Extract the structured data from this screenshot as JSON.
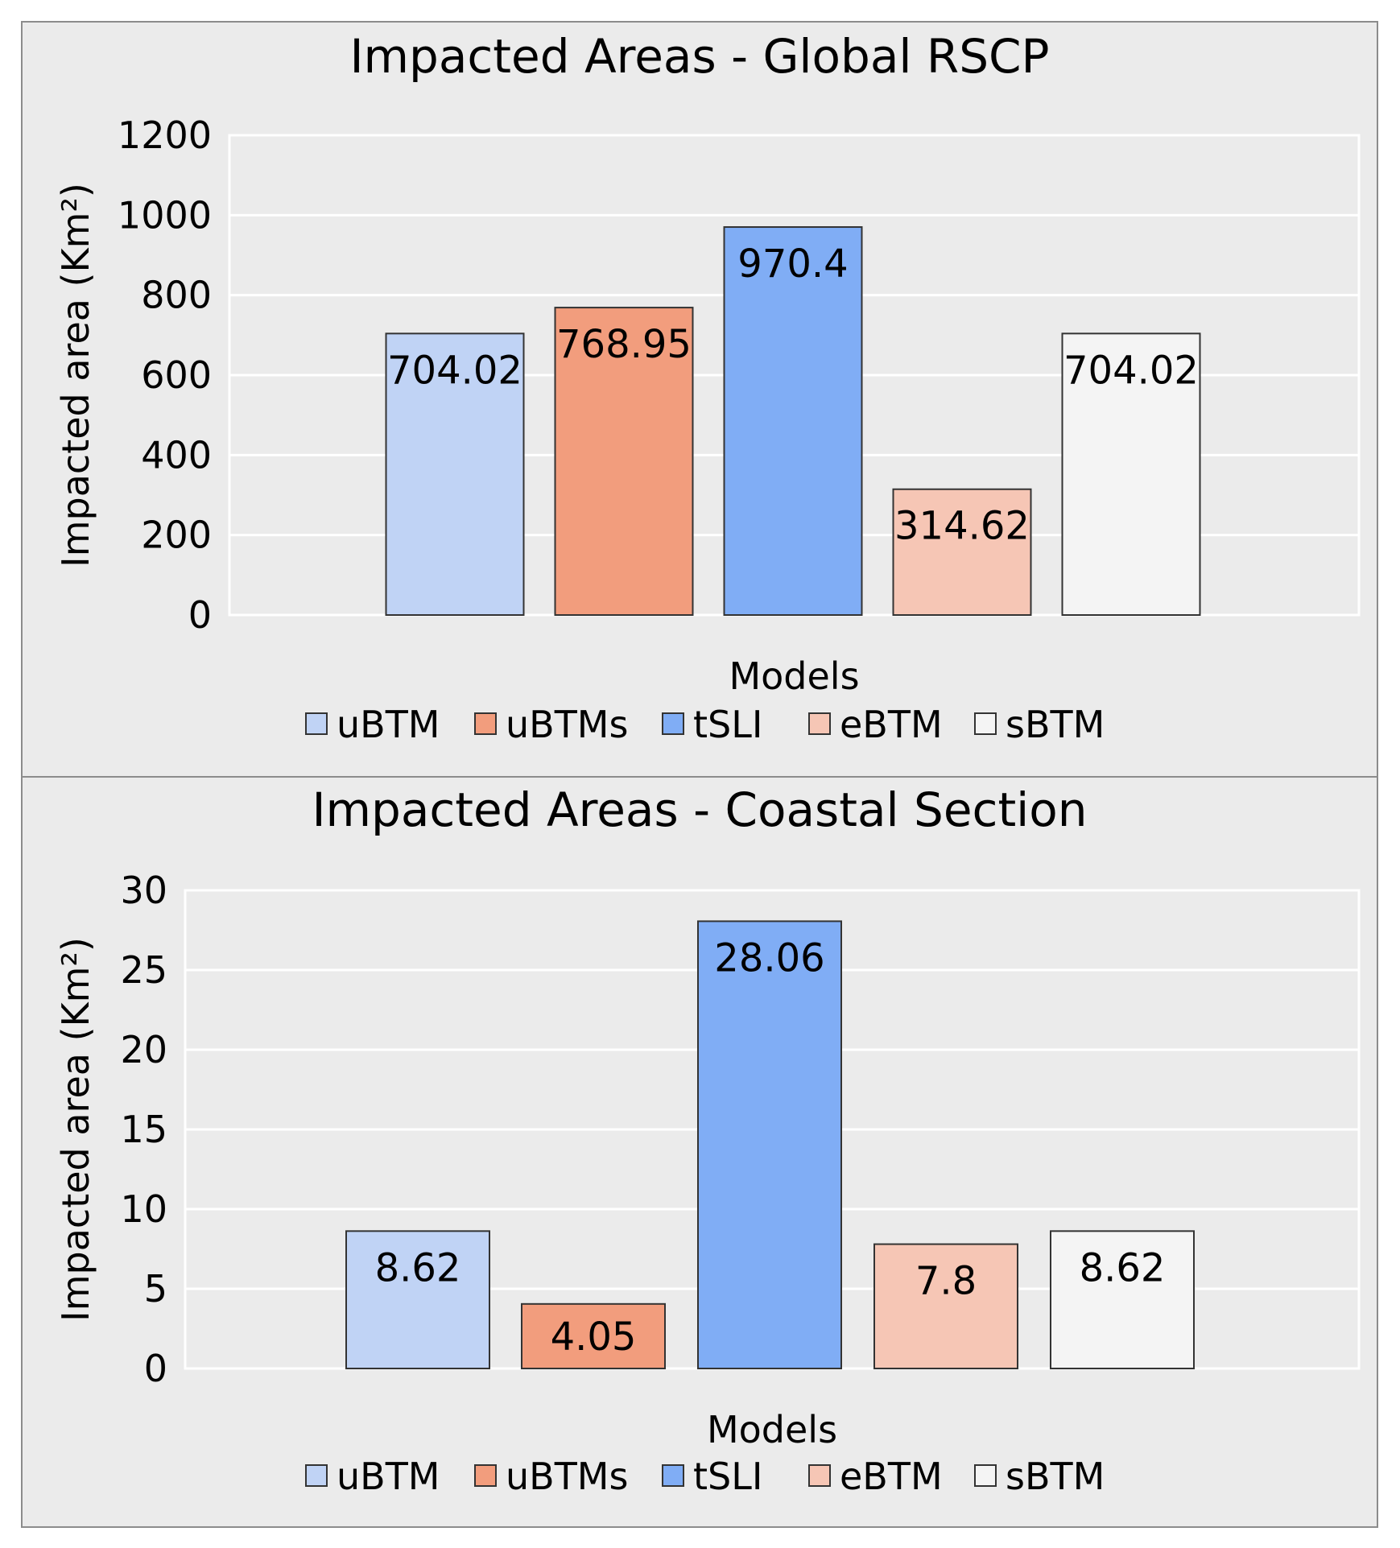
{
  "chart_data": [
    {
      "type": "bar",
      "title": "Impacted Areas - Global RSCP",
      "xlabel": "Models",
      "ylabel": "Impacted area (Km²)",
      "ylim": [
        0,
        1200
      ],
      "yticks": [
        0,
        200,
        400,
        600,
        800,
        1000,
        1200
      ],
      "grid": true,
      "legend_position": "bottom",
      "series": [
        {
          "name": "uBTM",
          "value": 704.02,
          "label": "704.02",
          "color": "#c0d3f5"
        },
        {
          "name": "uBTMs",
          "value": 768.95,
          "label": "768.95",
          "color": "#f29d7d"
        },
        {
          "name": "tSLI",
          "value": 970.4,
          "label": "970.4",
          "color": "#80adf5"
        },
        {
          "name": "eBTM",
          "value": 314.62,
          "label": "314.62",
          "color": "#f6c6b5"
        },
        {
          "name": "sBTM",
          "value": 704.02,
          "label": "704.02",
          "color": "#f4f4f4"
        }
      ]
    },
    {
      "type": "bar",
      "title": "Impacted Areas - Coastal Section",
      "xlabel": "Models",
      "ylabel": "Impacted area (Km²)",
      "ylim": [
        0,
        30
      ],
      "yticks": [
        0,
        5,
        10,
        15,
        20,
        25,
        30
      ],
      "grid": true,
      "legend_position": "bottom",
      "series": [
        {
          "name": "uBTM",
          "value": 8.62,
          "label": "8.62",
          "color": "#c0d3f5"
        },
        {
          "name": "uBTMs",
          "value": 4.05,
          "label": "4.05",
          "color": "#f29d7d"
        },
        {
          "name": "tSLI",
          "value": 28.06,
          "label": "28.06",
          "color": "#80adf5"
        },
        {
          "name": "eBTM",
          "value": 7.8,
          "label": "7.8",
          "color": "#f6c6b5"
        },
        {
          "name": "sBTM",
          "value": 8.62,
          "label": "8.62",
          "color": "#f4f4f4"
        }
      ]
    }
  ]
}
